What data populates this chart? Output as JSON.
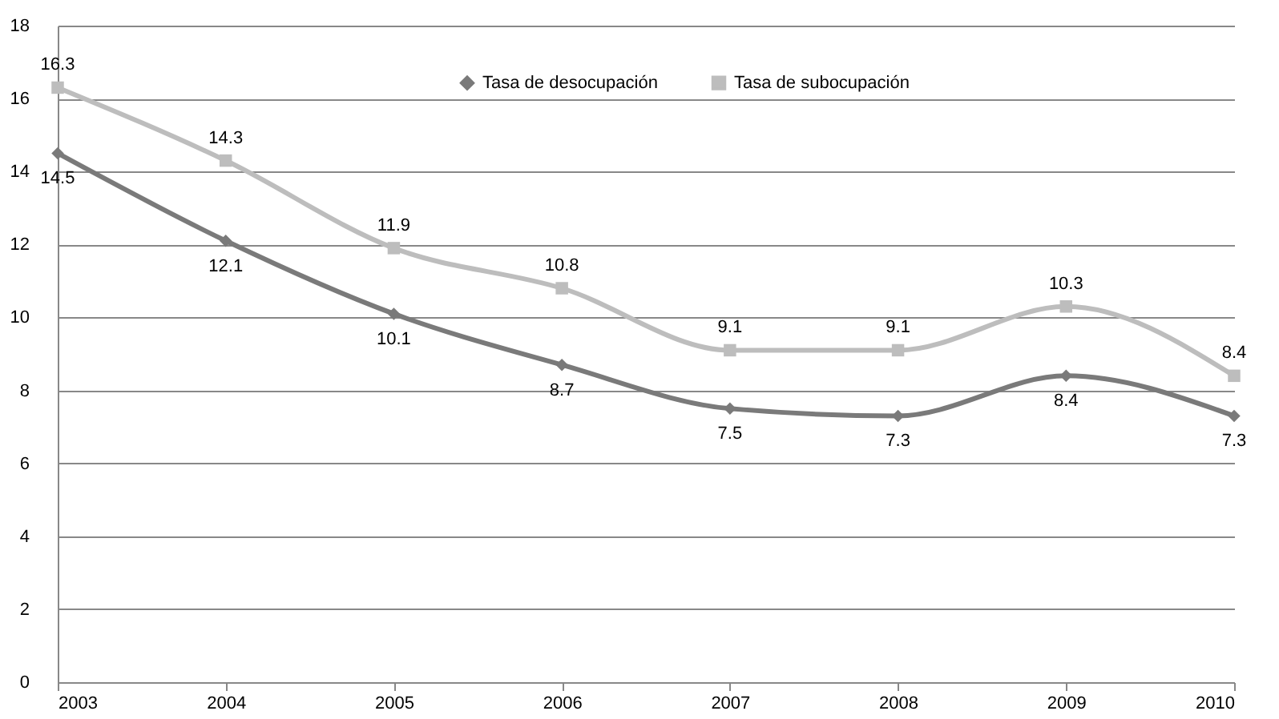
{
  "chart_data": {
    "type": "line",
    "x": [
      2003,
      2004,
      2005,
      2006,
      2007,
      2008,
      2009,
      2010
    ],
    "series": [
      {
        "name": "Tasa de desocupación",
        "color": "#7a7a7a",
        "marker": "diamond",
        "values": [
          14.5,
          12.1,
          10.1,
          8.7,
          7.5,
          7.3,
          8.4,
          7.3
        ]
      },
      {
        "name": "Tasa de subocupación",
        "color": "#bdbdbd",
        "marker": "square",
        "values": [
          16.3,
          14.3,
          11.9,
          10.8,
          9.1,
          9.1,
          10.3,
          8.4
        ]
      }
    ],
    "xlim": [
      2003,
      2010
    ],
    "xticks": [
      2003,
      2004,
      2005,
      2006,
      2007,
      2008,
      2009,
      2010
    ],
    "ylim": [
      0,
      18
    ],
    "yticks": [
      0,
      2,
      4,
      6,
      8,
      10,
      12,
      14,
      16,
      18
    ],
    "grid": "y",
    "legend": "top",
    "data_labels": true,
    "line_style": "solid"
  }
}
